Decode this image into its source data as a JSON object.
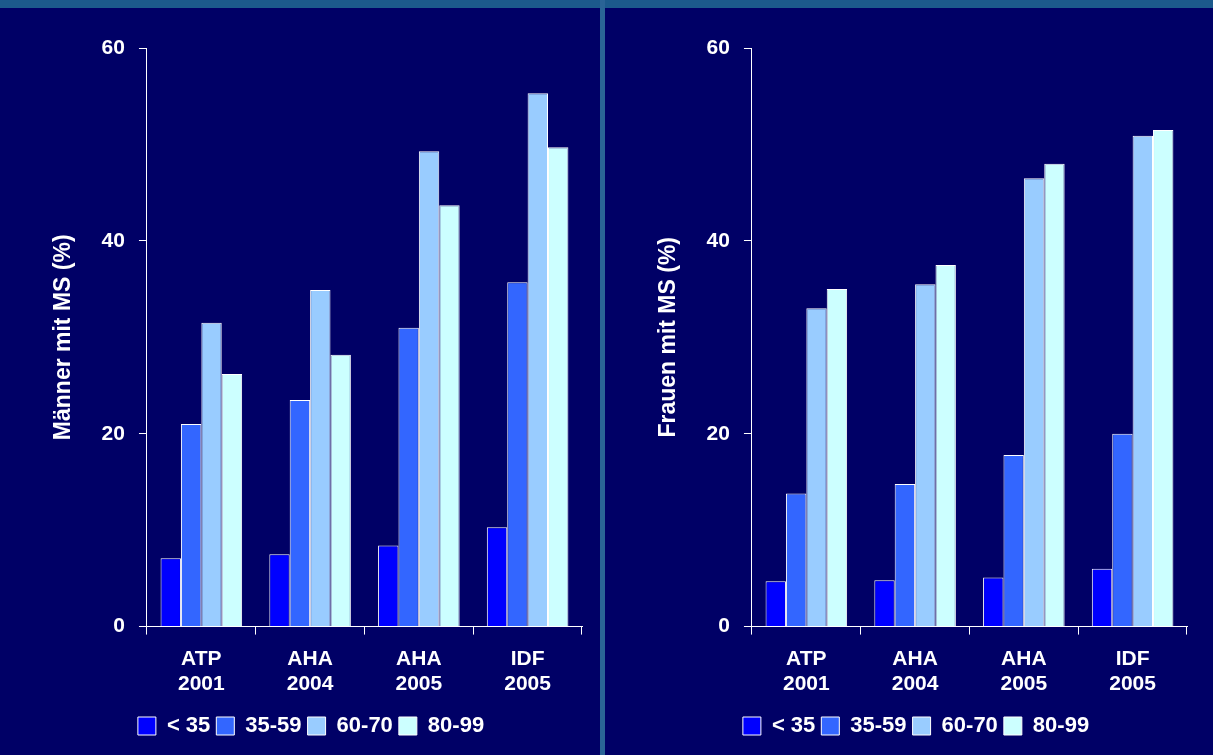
{
  "chart_data": [
    {
      "type": "bar",
      "ylabel": "Männer mit MS (%)",
      "categories": [
        "ATP 2001",
        "AHA 2004",
        "AHA 2005",
        "IDF 2005"
      ],
      "ylim": [
        0,
        60
      ],
      "yticks": [
        0,
        20,
        40,
        60
      ],
      "grid": false,
      "legend": "bottom",
      "series": [
        {
          "name": "< 35",
          "color": "#0000ff",
          "values": [
            7.1,
            7.5,
            8.4,
            10.3
          ]
        },
        {
          "name": "35-59",
          "color": "#3366ff",
          "values": [
            21.0,
            23.5,
            31.0,
            35.7
          ]
        },
        {
          "name": "60-70",
          "color": "#99ccff",
          "values": [
            31.5,
            34.9,
            49.3,
            55.3
          ]
        },
        {
          "name": "80-99",
          "color": "#ccffff",
          "values": [
            26.2,
            28.2,
            43.7,
            49.7
          ]
        }
      ]
    },
    {
      "type": "bar",
      "ylabel": "Frauen mit MS (%)",
      "categories": [
        "ATP 2001",
        "AHA 2004",
        "AHA 2005",
        "IDF 2005"
      ],
      "ylim": [
        0,
        60
      ],
      "yticks": [
        0,
        20,
        40,
        60
      ],
      "grid": false,
      "legend": "bottom",
      "series": [
        {
          "name": "< 35",
          "color": "#0000ff",
          "values": [
            4.7,
            4.8,
            5.1,
            6.0
          ]
        },
        {
          "name": "35-59",
          "color": "#3366ff",
          "values": [
            13.8,
            14.8,
            17.8,
            20.0
          ]
        },
        {
          "name": "60-70",
          "color": "#99ccff",
          "values": [
            33.0,
            35.5,
            46.5,
            50.9
          ]
        },
        {
          "name": "80-99",
          "color": "#ccffff",
          "values": [
            35.0,
            37.5,
            48.0,
            51.5
          ]
        }
      ]
    }
  ]
}
